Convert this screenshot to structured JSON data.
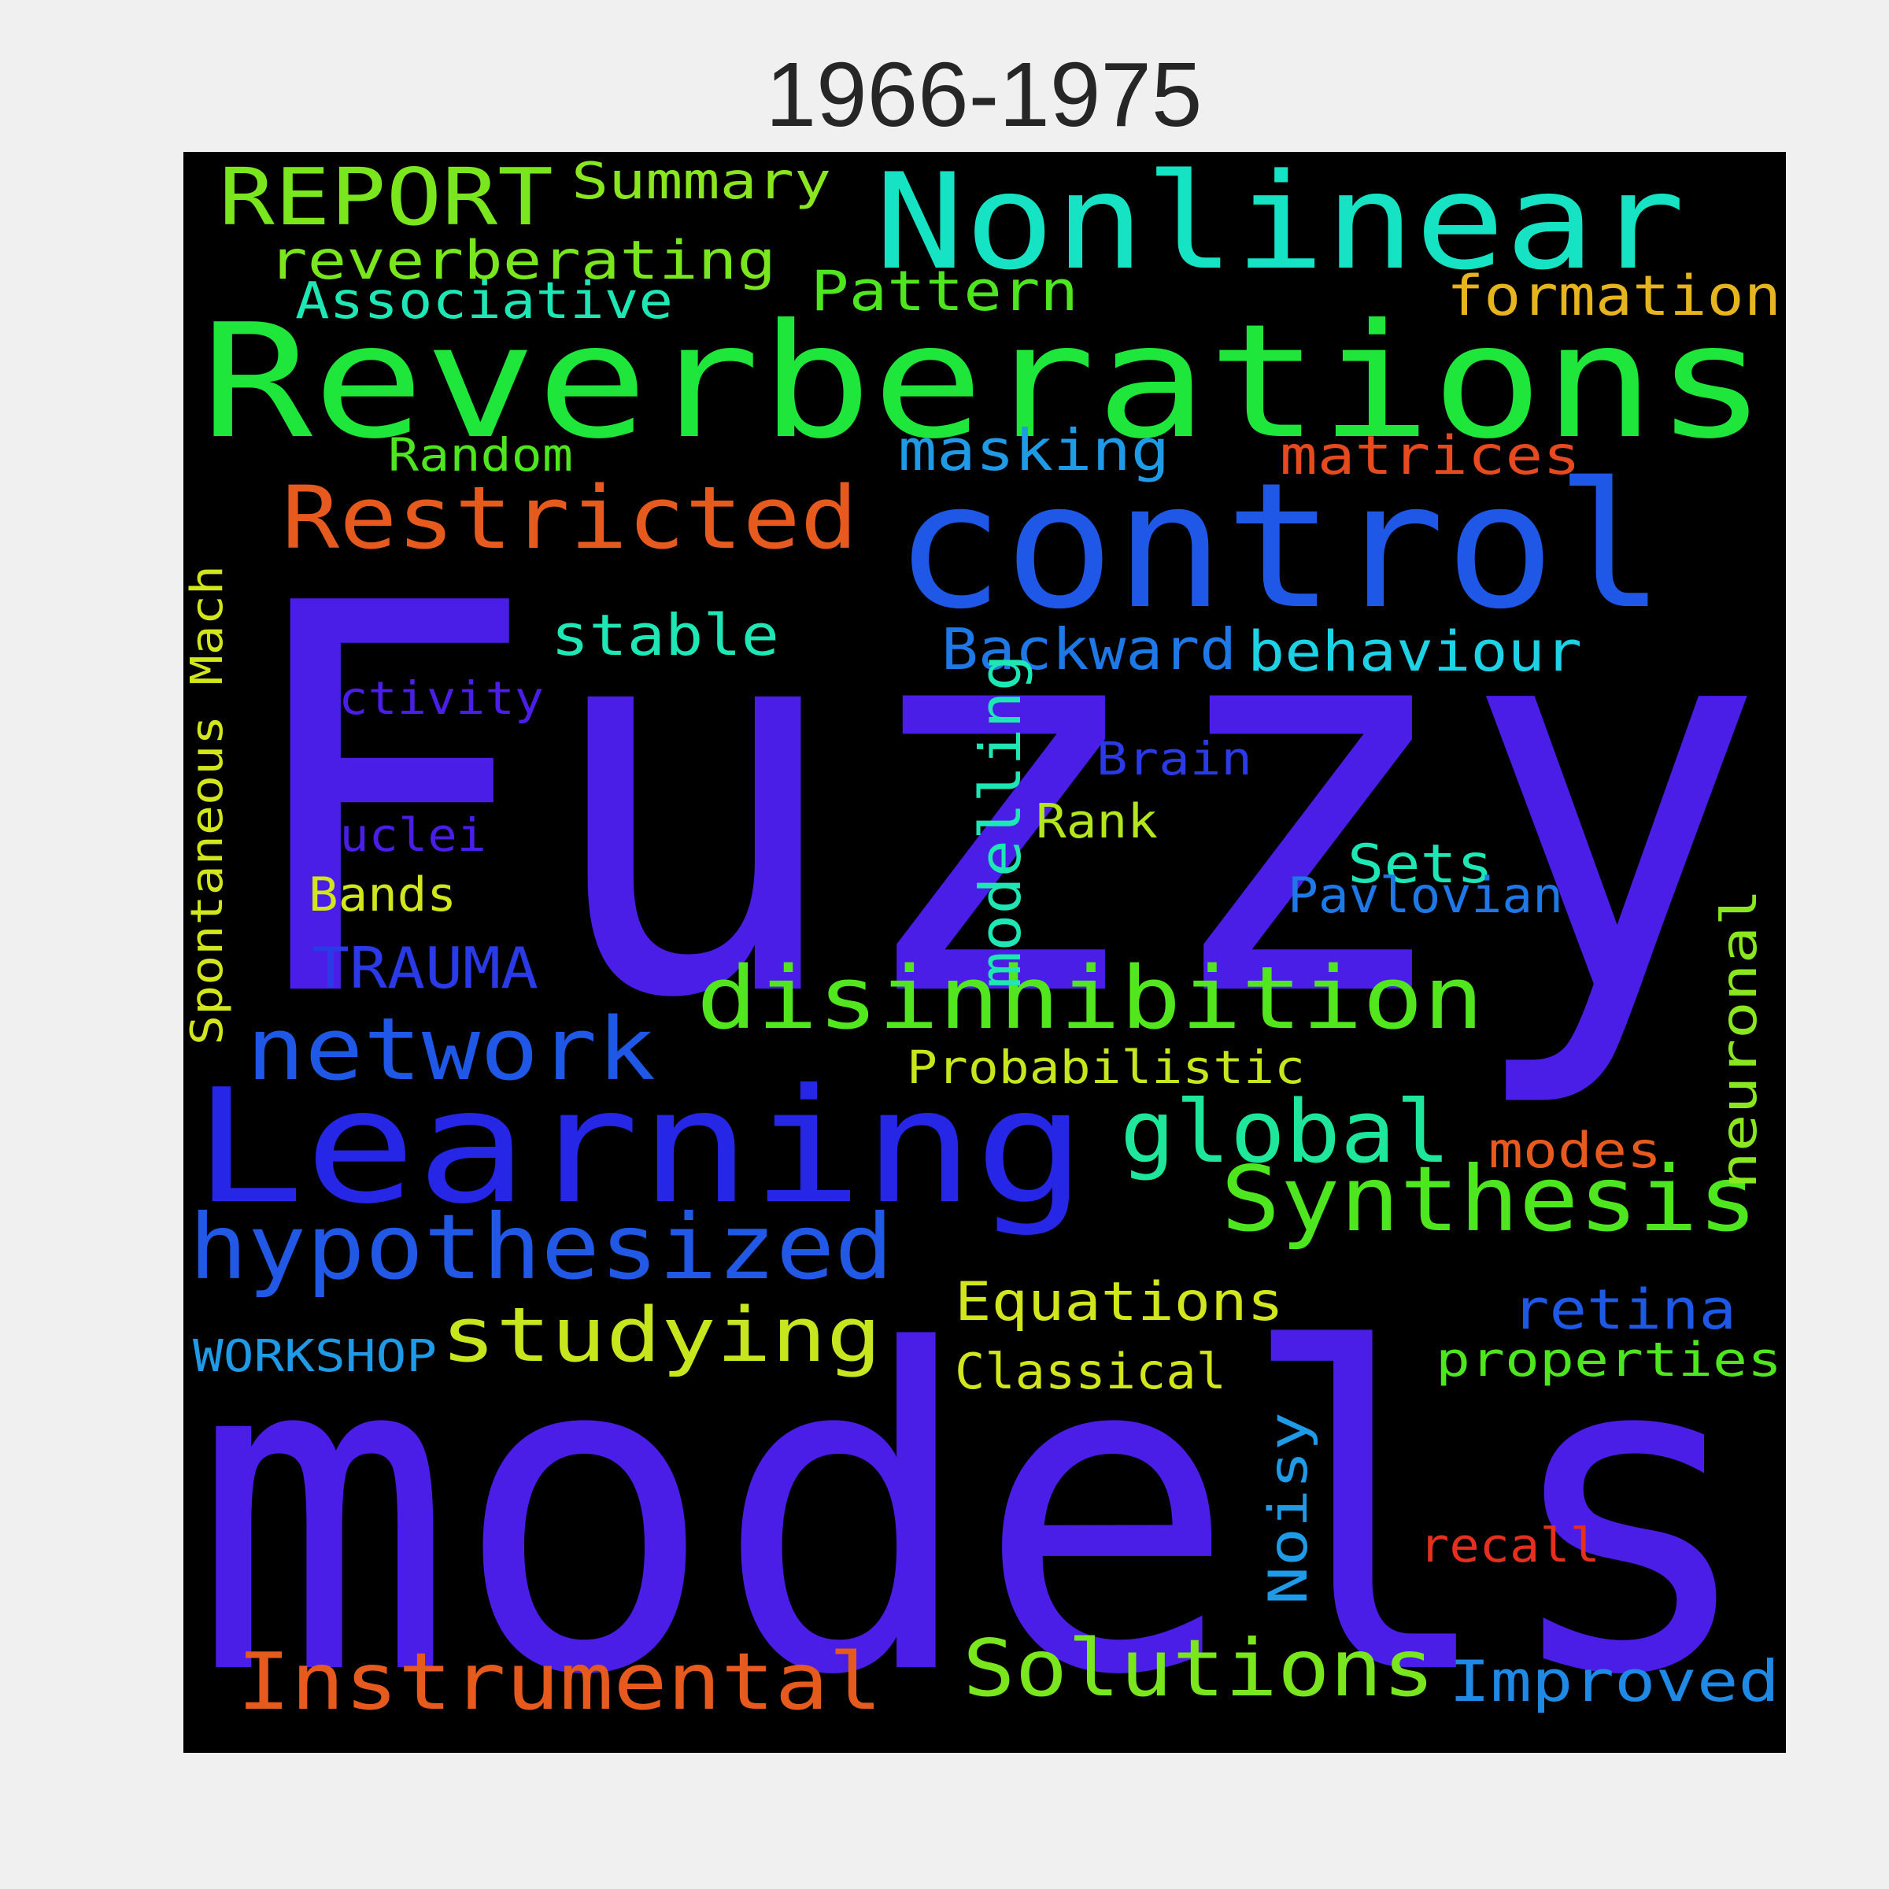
{
  "title": "1966-1975",
  "words": [
    {
      "id": "fuzzy",
      "text": "Fuzzy",
      "color": "#4a1ee6"
    },
    {
      "id": "models",
      "text": "models",
      "color": "#4a1ee6"
    },
    {
      "id": "reverberations",
      "text": "Reverberations",
      "color": "#1ee63a"
    },
    {
      "id": "control",
      "text": "control",
      "color": "#1f58e6"
    },
    {
      "id": "nonlinear",
      "text": "Nonlinear",
      "color": "#16e3c3"
    },
    {
      "id": "learning",
      "text": "Learning",
      "color": "#2626e6"
    },
    {
      "id": "restricted",
      "text": "Restricted",
      "color": "#e65a1e"
    },
    {
      "id": "disinhibition",
      "text": "disinhibition",
      "color": "#52e61e"
    },
    {
      "id": "hypothesized",
      "text": "hypothesized",
      "color": "#2158e6"
    },
    {
      "id": "synthesis",
      "text": "Synthesis",
      "color": "#4ee61e"
    },
    {
      "id": "network",
      "text": "network",
      "color": "#1f58e6"
    },
    {
      "id": "global",
      "text": "global",
      "color": "#1ee69a"
    },
    {
      "id": "instrumental",
      "text": "Instrumental",
      "color": "#e65a1e"
    },
    {
      "id": "solutions",
      "text": "Solutions",
      "color": "#7ae61e"
    },
    {
      "id": "report",
      "text": "REPORT",
      "color": "#7ae61e"
    },
    {
      "id": "studying",
      "text": "studying",
      "color": "#c8e61e"
    },
    {
      "id": "reverberating",
      "text": "reverberating",
      "color": "#7ae61e"
    },
    {
      "id": "summary",
      "text": "Summary",
      "color": "#8ae61e"
    },
    {
      "id": "associative",
      "text": "Associative",
      "color": "#1ee6b4"
    },
    {
      "id": "pattern",
      "text": "Pattern",
      "color": "#4ee61e"
    },
    {
      "id": "formation",
      "text": "formation",
      "color": "#e6b41e"
    },
    {
      "id": "random",
      "text": "Random",
      "color": "#4ee61e"
    },
    {
      "id": "masking",
      "text": "masking",
      "color": "#1e9ae6"
    },
    {
      "id": "matrices",
      "text": "matrices",
      "color": "#e64a1e"
    },
    {
      "id": "stable",
      "text": "stable",
      "color": "#1ee6b4"
    },
    {
      "id": "backward",
      "text": "Backward",
      "color": "#1e78e6"
    },
    {
      "id": "behaviour",
      "text": "behaviour",
      "color": "#1ed2e6"
    },
    {
      "id": "modelling",
      "text": "modelling",
      "color": "#1ee6b4"
    },
    {
      "id": "spontaneous-mach",
      "text": "Spontaneous Mach",
      "color": "#d2e61e"
    },
    {
      "id": "activity",
      "text": "activity",
      "color": "#4a1ee6"
    },
    {
      "id": "brain",
      "text": "Brain",
      "color": "#2a3ae6"
    },
    {
      "id": "rank",
      "text": "Rank",
      "color": "#b4e61e"
    },
    {
      "id": "nuclei",
      "text": "nuclei",
      "color": "#4a1ee6"
    },
    {
      "id": "sets",
      "text": "Sets",
      "color": "#1ee6b4"
    },
    {
      "id": "pavlovian",
      "text": "Pavlovian",
      "color": "#1e78e6"
    },
    {
      "id": "bands",
      "text": "Bands",
      "color": "#d2e61e"
    },
    {
      "id": "trauma",
      "text": "TRAUMA",
      "color": "#2a3ae6"
    },
    {
      "id": "neuronal",
      "text": "neuronal",
      "color": "#8ae61e"
    },
    {
      "id": "probabilistic",
      "text": "Probabilistic",
      "color": "#c8e61e"
    },
    {
      "id": "modes",
      "text": "modes",
      "color": "#e65a1e"
    },
    {
      "id": "equations",
      "text": "Equations",
      "color": "#d2e61e"
    },
    {
      "id": "retina",
      "text": "retina",
      "color": "#1e58e6"
    },
    {
      "id": "properties",
      "text": "properties",
      "color": "#4ee61e"
    },
    {
      "id": "workshop",
      "text": "WORKSHOP",
      "color": "#1e9ae6"
    },
    {
      "id": "classical",
      "text": "Classical",
      "color": "#d2e61e"
    },
    {
      "id": "noisy",
      "text": "Noisy",
      "color": "#1e9ae6"
    },
    {
      "id": "recall",
      "text": "recall",
      "color": "#e6301e"
    },
    {
      "id": "improved",
      "text": "Improved",
      "color": "#1e8ae6"
    }
  ]
}
